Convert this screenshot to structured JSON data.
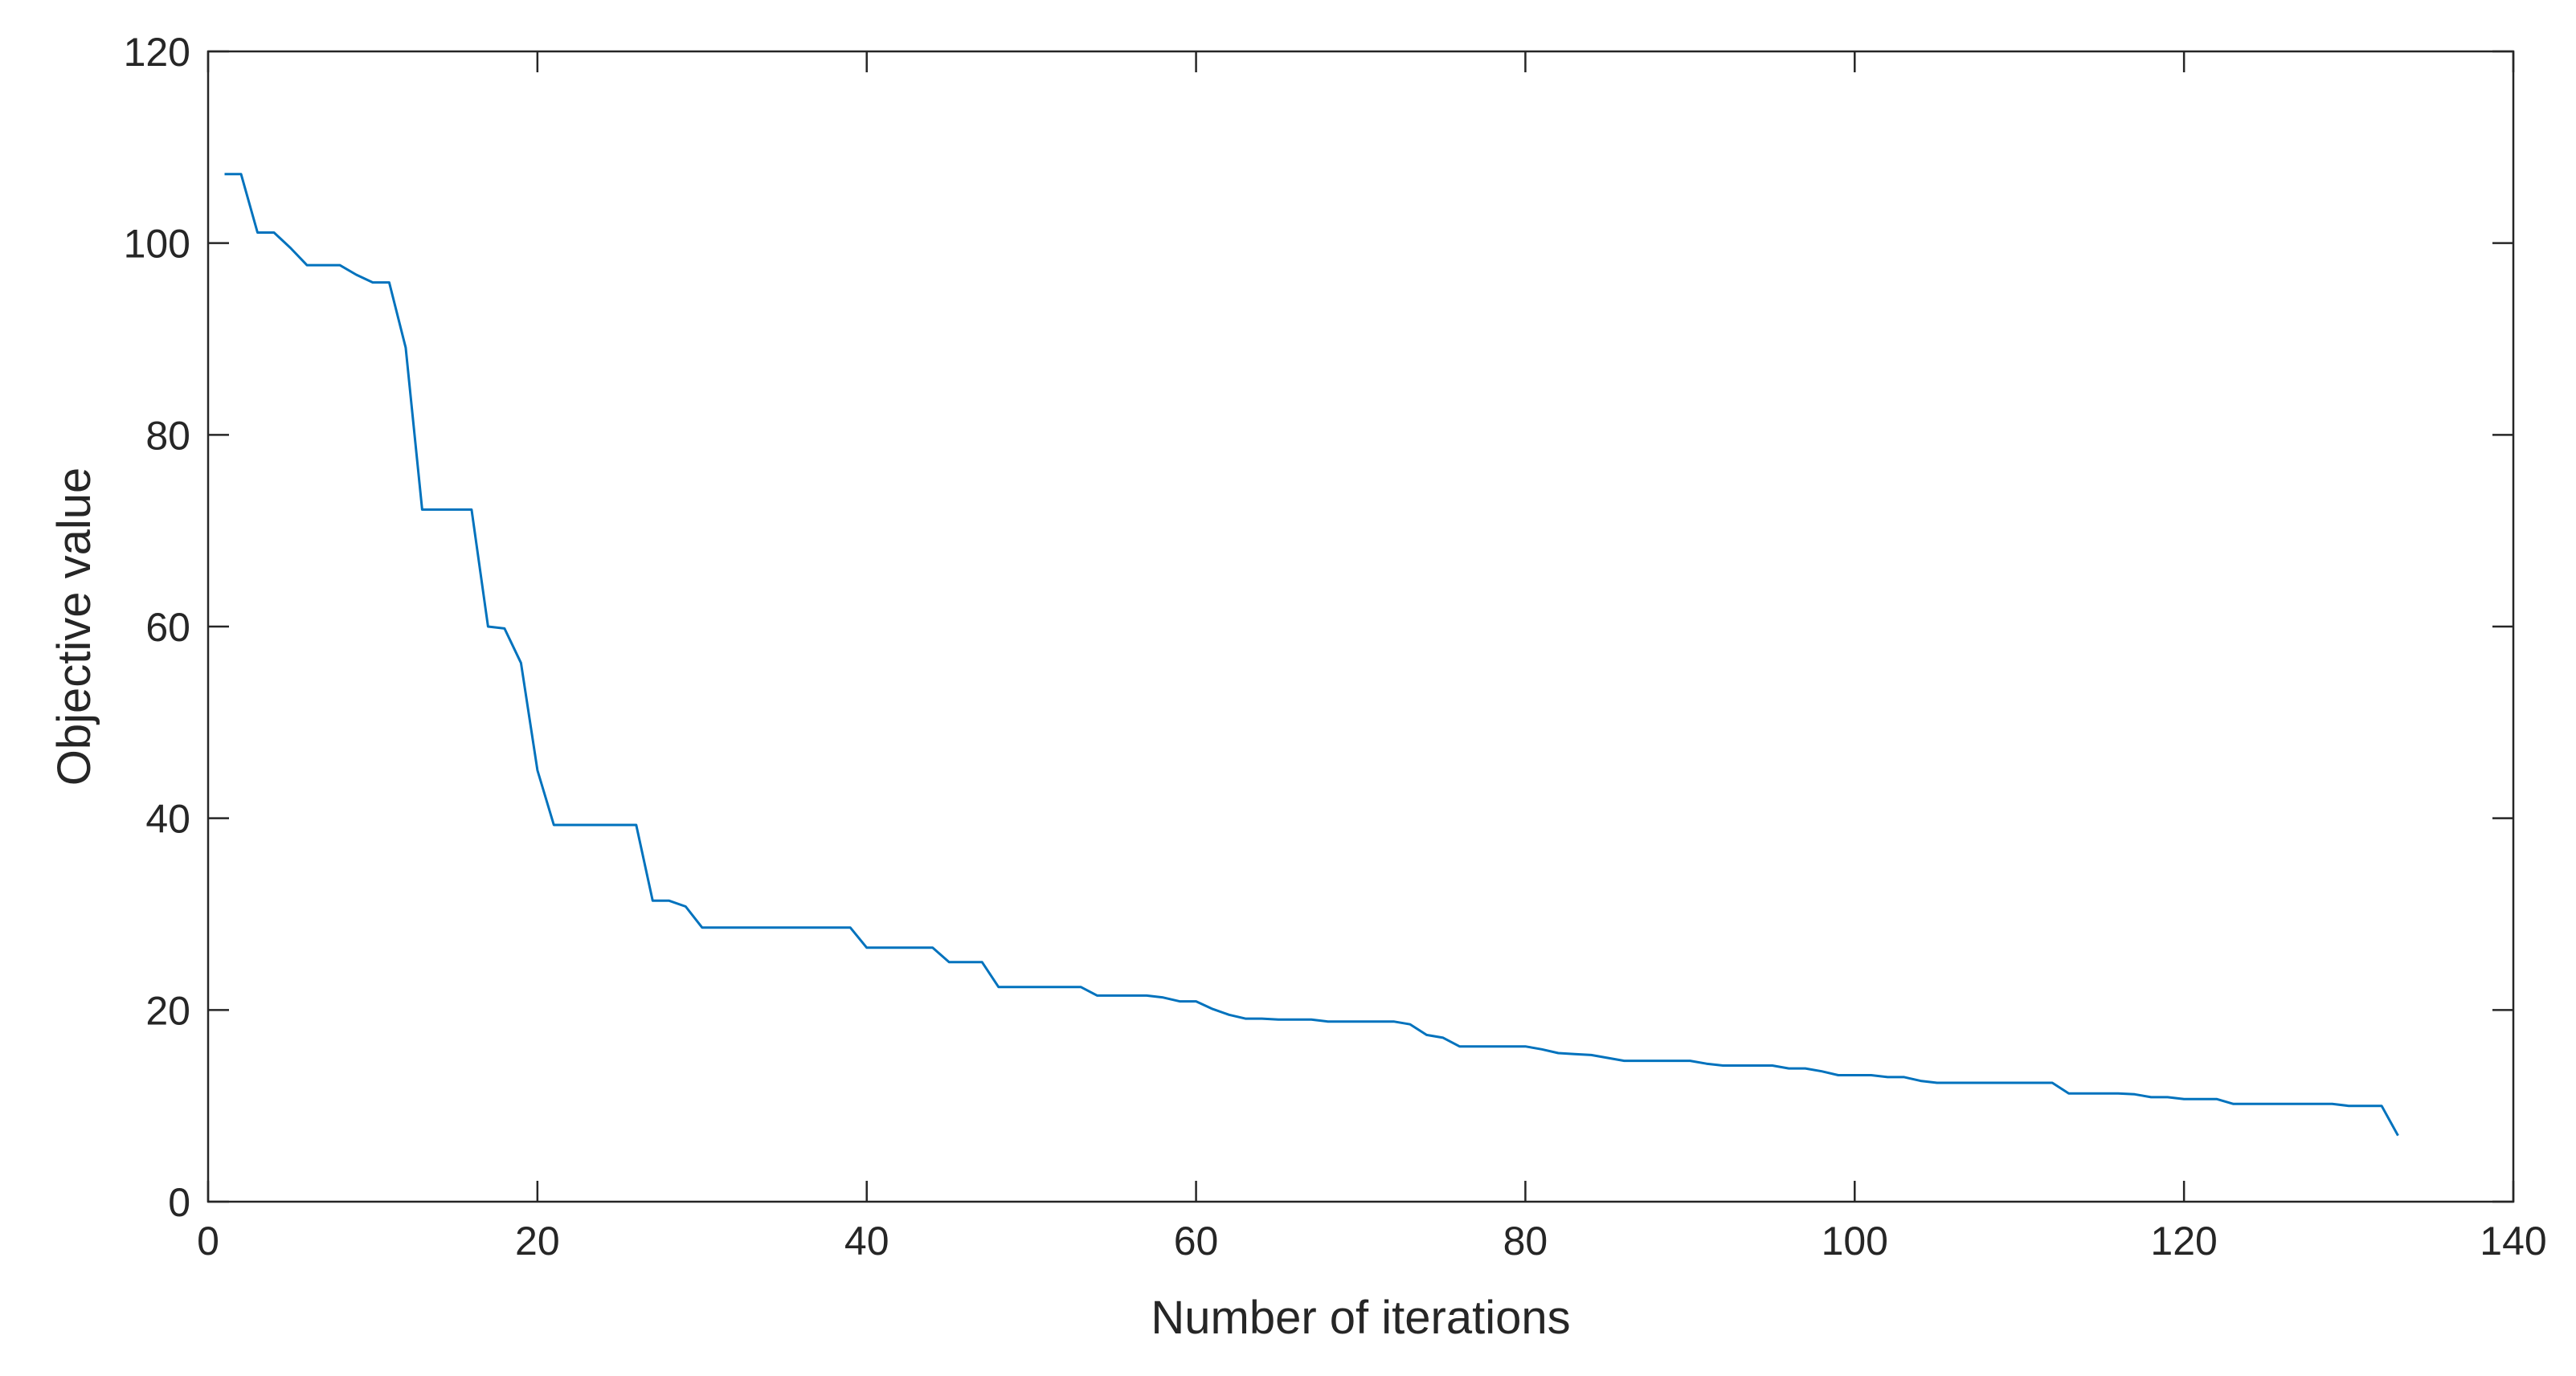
{
  "chart_data": {
    "type": "line",
    "title": "",
    "xlabel": "Number of iterations",
    "ylabel": "Objective value",
    "xlim": [
      0,
      140
    ],
    "ylim": [
      0,
      120
    ],
    "xticks": [
      0,
      20,
      40,
      60,
      80,
      100,
      120,
      140
    ],
    "yticks": [
      0,
      20,
      40,
      60,
      80,
      100,
      120
    ],
    "xtick_labels": [
      "0",
      "20",
      "40",
      "60",
      "80",
      "100",
      "120",
      "140"
    ],
    "ytick_labels": [
      "0",
      "20",
      "40",
      "60",
      "80",
      "100",
      "120"
    ],
    "grid": false,
    "legend": "none",
    "series": [
      {
        "color": "#0072BD",
        "x": [
          1,
          2,
          3,
          4,
          5,
          6,
          7,
          8,
          9,
          10,
          11,
          12,
          13,
          14,
          15,
          16,
          17,
          18,
          19,
          20,
          21,
          22,
          23,
          24,
          25,
          26,
          27,
          28,
          29,
          30,
          31,
          32,
          33,
          34,
          35,
          36,
          37,
          38,
          39,
          40,
          41,
          42,
          43,
          44,
          45,
          46,
          47,
          48,
          49,
          50,
          51,
          52,
          53,
          54,
          55,
          56,
          57,
          58,
          59,
          60,
          61,
          62,
          63,
          64,
          65,
          66,
          67,
          68,
          69,
          70,
          71,
          72,
          73,
          74,
          75,
          76,
          77,
          78,
          79,
          80,
          81,
          82,
          83,
          84,
          85,
          86,
          87,
          88,
          89,
          90,
          91,
          92,
          93,
          94,
          95,
          96,
          97,
          98,
          99,
          100,
          101,
          102,
          103,
          104,
          105,
          106,
          107,
          108,
          109,
          110,
          111,
          112,
          113,
          114,
          115,
          116,
          117,
          118,
          119,
          120,
          121,
          122,
          123,
          124,
          125,
          126,
          127,
          128,
          129,
          130,
          131,
          132,
          133
        ],
        "y": [
          107.2,
          107.2,
          101.1,
          101.1,
          99.5,
          97.7,
          97.7,
          97.7,
          96.7,
          95.9,
          95.9,
          89.1,
          72.2,
          72.2,
          72.2,
          72.2,
          60.0,
          59.8,
          56.2,
          45.0,
          39.3,
          39.3,
          39.3,
          39.3,
          39.3,
          39.3,
          31.4,
          31.4,
          30.8,
          28.6,
          28.6,
          28.6,
          28.6,
          28.6,
          28.6,
          28.6,
          28.6,
          28.6,
          28.6,
          26.5,
          26.5,
          26.5,
          26.5,
          26.5,
          25.0,
          25.0,
          25.0,
          22.4,
          22.4,
          22.4,
          22.4,
          22.4,
          22.4,
          21.5,
          21.5,
          21.5,
          21.5,
          21.3,
          20.9,
          20.9,
          20.1,
          19.5,
          19.1,
          19.1,
          19.0,
          19.0,
          19.0,
          18.8,
          18.8,
          18.8,
          18.8,
          18.8,
          18.5,
          17.4,
          17.1,
          16.2,
          16.2,
          16.2,
          16.2,
          16.2,
          15.9,
          15.5,
          15.4,
          15.3,
          15.0,
          14.7,
          14.7,
          14.7,
          14.7,
          14.7,
          14.4,
          14.2,
          14.2,
          14.2,
          14.2,
          13.9,
          13.9,
          13.6,
          13.2,
          13.2,
          13.2,
          13.0,
          13.0,
          12.6,
          12.4,
          12.4,
          12.4,
          12.4,
          12.4,
          12.4,
          12.4,
          12.4,
          11.3,
          11.3,
          11.3,
          11.3,
          11.2,
          10.9,
          10.9,
          10.7,
          10.7,
          10.7,
          10.2,
          10.2,
          10.2,
          10.2,
          10.2,
          10.2,
          10.2,
          10.0,
          10.0,
          10.0,
          6.9
        ]
      }
    ]
  }
}
